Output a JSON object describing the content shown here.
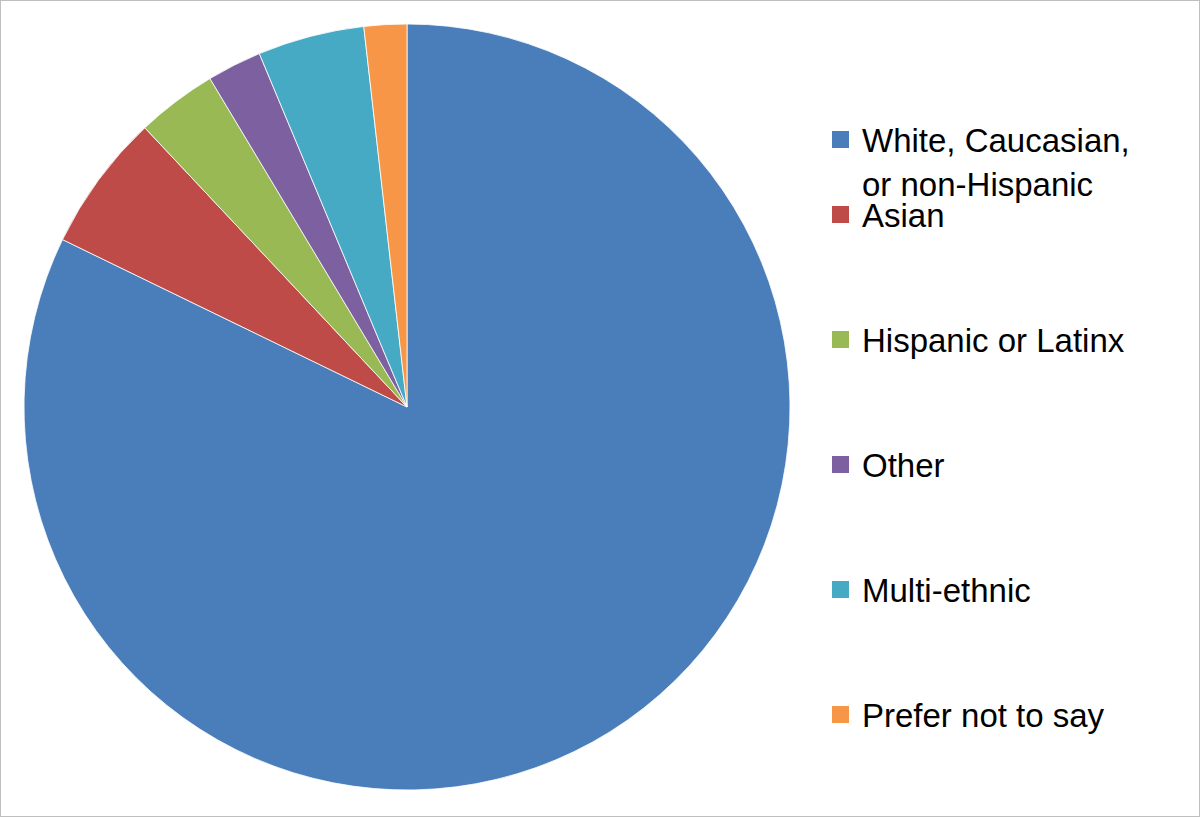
{
  "chart_data": {
    "type": "pie",
    "categories": [
      "White, Caucasian, or non-Hispanic",
      "Asian",
      "Hispanic or Latinx",
      "Other",
      "Multi-ethnic",
      "Prefer not to say"
    ],
    "values": [
      82.2,
      5.8,
      3.4,
      2.3,
      4.5,
      1.8
    ],
    "colors": [
      "#4a7ebb",
      "#be4b48",
      "#98b954",
      "#7d60a0",
      "#46aac5",
      "#f79646"
    ],
    "legend": "right"
  }
}
